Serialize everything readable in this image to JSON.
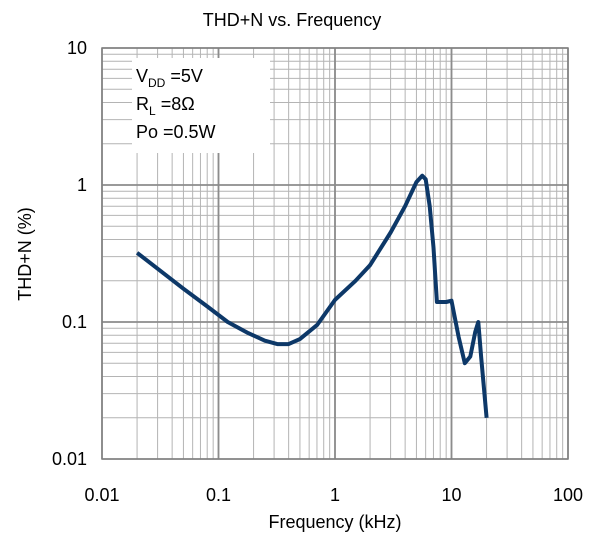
{
  "chart_data": {
    "type": "line",
    "title": "THD+N vs. Frequency",
    "xlabel": "Frequency  (kHz)",
    "ylabel": "THD+N (%)",
    "xscale": "log",
    "yscale": "log",
    "xlim": [
      0.01,
      100
    ],
    "ylim": [
      0.01,
      10
    ],
    "grid": true,
    "x_ticks": [
      "0.01",
      "0.1",
      "1",
      "10",
      "100"
    ],
    "y_ticks": [
      "0.01",
      "0.1",
      "1",
      "10"
    ],
    "annotations": [
      {
        "main": "V",
        "sub": "DD",
        "rest": " =5V"
      },
      {
        "main": "R",
        "sub": "L",
        "rest": " =8Ω"
      },
      {
        "main": "Po =0.5W",
        "sub": "",
        "rest": ""
      }
    ],
    "series": [
      {
        "color": "#0d3868",
        "points": [
          [
            0.02,
            0.32
          ],
          [
            0.03,
            0.245
          ],
          [
            0.05,
            0.175
          ],
          [
            0.08,
            0.13
          ],
          [
            0.12,
            0.1
          ],
          [
            0.18,
            0.083
          ],
          [
            0.25,
            0.073
          ],
          [
            0.32,
            0.069
          ],
          [
            0.4,
            0.069
          ],
          [
            0.5,
            0.075
          ],
          [
            0.7,
            0.095
          ],
          [
            1.0,
            0.145
          ],
          [
            1.5,
            0.2
          ],
          [
            2.0,
            0.26
          ],
          [
            3.0,
            0.45
          ],
          [
            4.0,
            0.7
          ],
          [
            5.0,
            1.05
          ],
          [
            5.6,
            1.17
          ],
          [
            6.0,
            1.1
          ],
          [
            6.5,
            0.7
          ],
          [
            7.0,
            0.35
          ],
          [
            7.5,
            0.14
          ],
          [
            9.0,
            0.14
          ],
          [
            10.0,
            0.143
          ],
          [
            11.5,
            0.078
          ],
          [
            13.0,
            0.05
          ],
          [
            14.5,
            0.056
          ],
          [
            16.0,
            0.085
          ],
          [
            17.0,
            0.1
          ],
          [
            18.0,
            0.055
          ],
          [
            20.0,
            0.02
          ]
        ]
      }
    ]
  }
}
